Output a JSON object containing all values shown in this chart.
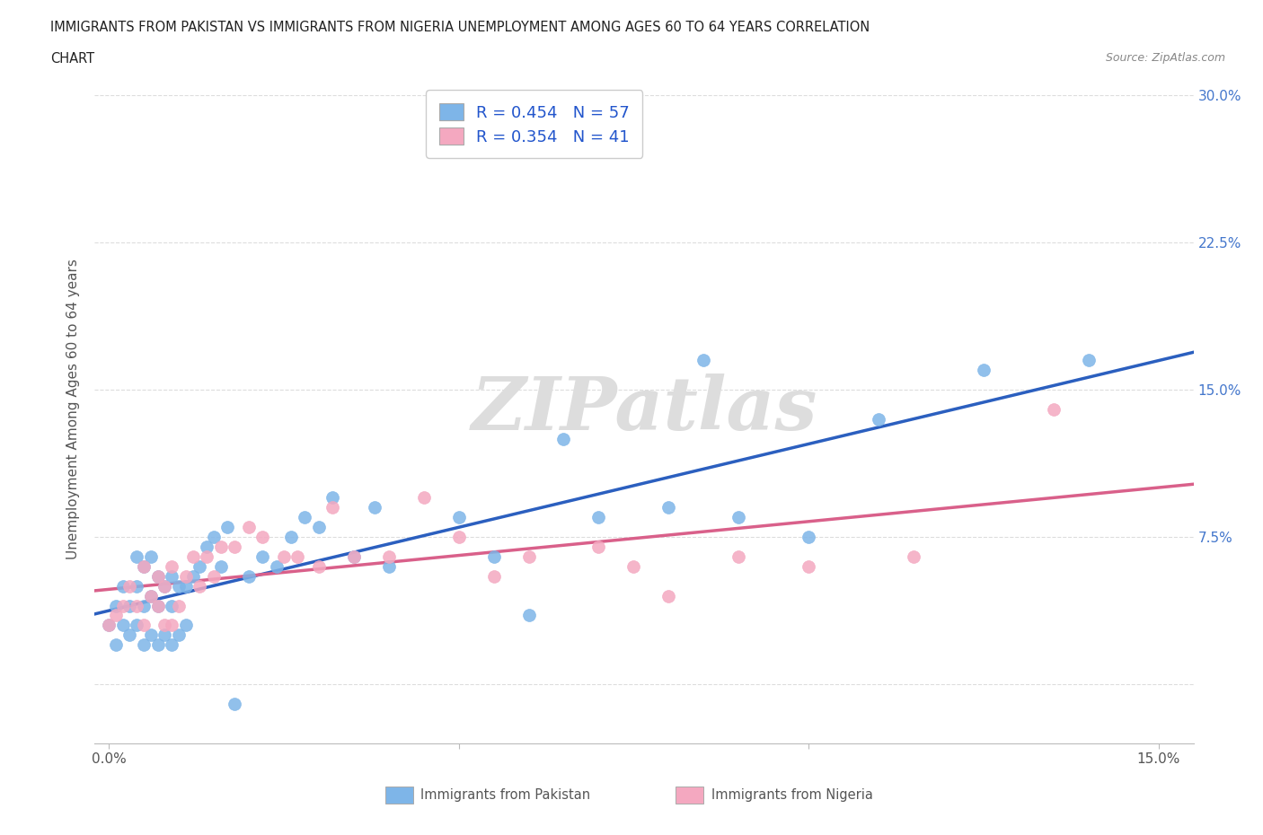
{
  "title_line1": "IMMIGRANTS FROM PAKISTAN VS IMMIGRANTS FROM NIGERIA UNEMPLOYMENT AMONG AGES 60 TO 64 YEARS CORRELATION",
  "title_line2": "CHART",
  "source": "Source: ZipAtlas.com",
  "ylabel": "Unemployment Among Ages 60 to 64 years",
  "xlim": [
    -0.002,
    0.155
  ],
  "ylim": [
    -0.03,
    0.31
  ],
  "xtick_positions": [
    0.0,
    0.05,
    0.1,
    0.15
  ],
  "xtick_labels": [
    "0.0%",
    "",
    "",
    "15.0%"
  ],
  "ytick_positions": [
    0.0,
    0.075,
    0.15,
    0.225,
    0.3
  ],
  "ytick_labels": [
    "",
    "7.5%",
    "15.0%",
    "22.5%",
    "30.0%"
  ],
  "R_pakistan": 0.454,
  "N_pakistan": 57,
  "R_nigeria": 0.354,
  "N_nigeria": 41,
  "color_pakistan": "#7EB5E8",
  "color_nigeria": "#F4A8C0",
  "line_color_pakistan": "#2B5FBF",
  "line_color_nigeria": "#D9608A",
  "legend_label_pakistan": "Immigrants from Pakistan",
  "legend_label_nigeria": "Immigrants from Nigeria",
  "pakistan_x": [
    0.0,
    0.001,
    0.001,
    0.002,
    0.002,
    0.003,
    0.003,
    0.004,
    0.004,
    0.004,
    0.005,
    0.005,
    0.005,
    0.006,
    0.006,
    0.006,
    0.007,
    0.007,
    0.007,
    0.008,
    0.008,
    0.009,
    0.009,
    0.009,
    0.01,
    0.01,
    0.011,
    0.011,
    0.012,
    0.013,
    0.014,
    0.015,
    0.016,
    0.017,
    0.018,
    0.02,
    0.022,
    0.024,
    0.026,
    0.028,
    0.03,
    0.032,
    0.035,
    0.038,
    0.04,
    0.05,
    0.055,
    0.06,
    0.065,
    0.07,
    0.08,
    0.085,
    0.09,
    0.1,
    0.11,
    0.125,
    0.14
  ],
  "pakistan_y": [
    0.03,
    0.02,
    0.04,
    0.03,
    0.05,
    0.025,
    0.04,
    0.03,
    0.05,
    0.065,
    0.02,
    0.04,
    0.06,
    0.025,
    0.045,
    0.065,
    0.02,
    0.04,
    0.055,
    0.025,
    0.05,
    0.02,
    0.04,
    0.055,
    0.025,
    0.05,
    0.03,
    0.05,
    0.055,
    0.06,
    0.07,
    0.075,
    0.06,
    0.08,
    -0.01,
    0.055,
    0.065,
    0.06,
    0.075,
    0.085,
    0.08,
    0.095,
    0.065,
    0.09,
    0.06,
    0.085,
    0.065,
    0.035,
    0.125,
    0.085,
    0.09,
    0.165,
    0.085,
    0.075,
    0.135,
    0.16,
    0.165
  ],
  "nigeria_x": [
    0.0,
    0.001,
    0.002,
    0.003,
    0.004,
    0.005,
    0.005,
    0.006,
    0.007,
    0.007,
    0.008,
    0.008,
    0.009,
    0.009,
    0.01,
    0.011,
    0.012,
    0.013,
    0.014,
    0.015,
    0.016,
    0.018,
    0.02,
    0.022,
    0.025,
    0.027,
    0.03,
    0.032,
    0.035,
    0.04,
    0.045,
    0.05,
    0.055,
    0.06,
    0.07,
    0.075,
    0.08,
    0.09,
    0.1,
    0.115,
    0.135
  ],
  "nigeria_y": [
    0.03,
    0.035,
    0.04,
    0.05,
    0.04,
    0.03,
    0.06,
    0.045,
    0.04,
    0.055,
    0.03,
    0.05,
    0.03,
    0.06,
    0.04,
    0.055,
    0.065,
    0.05,
    0.065,
    0.055,
    0.07,
    0.07,
    0.08,
    0.075,
    0.065,
    0.065,
    0.06,
    0.09,
    0.065,
    0.065,
    0.095,
    0.075,
    0.055,
    0.065,
    0.07,
    0.06,
    0.045,
    0.065,
    0.06,
    0.065,
    0.14
  ],
  "background_color": "#FFFFFF",
  "grid_color": "#DDDDDD",
  "watermark_text": "ZIPatlas",
  "watermark_color": "#DDDDDD"
}
